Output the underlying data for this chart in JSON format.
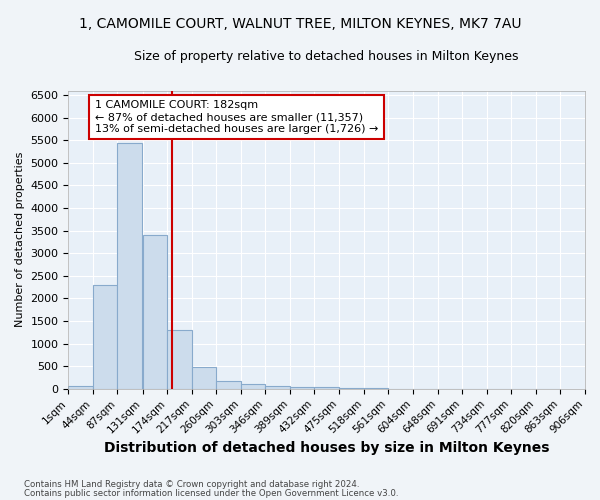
{
  "title1": "1, CAMOMILE COURT, WALNUT TREE, MILTON KEYNES, MK7 7AU",
  "title2": "Size of property relative to detached houses in Milton Keynes",
  "xlabel": "Distribution of detached houses by size in Milton Keynes",
  "ylabel": "Number of detached properties",
  "footer1": "Contains HM Land Registry data © Crown copyright and database right 2024.",
  "footer2": "Contains public sector information licensed under the Open Government Licence v3.0.",
  "bin_edges": [
    1,
    44,
    87,
    131,
    174,
    217,
    260,
    303,
    346,
    389,
    432,
    475,
    518,
    561,
    604,
    648,
    691,
    734,
    777,
    820,
    863
  ],
  "bar_heights": [
    70,
    2300,
    5450,
    3400,
    1300,
    480,
    170,
    100,
    70,
    40,
    50,
    30,
    10,
    5,
    5,
    5,
    3,
    2,
    2,
    2
  ],
  "bar_color": "#ccdcec",
  "bar_edgecolor": "#88aacc",
  "property_size": 182,
  "vline_color": "#cc0000",
  "annotation_title": "1 CAMOMILE COURT: 182sqm",
  "annotation_line1": "← 87% of detached houses are smaller (11,357)",
  "annotation_line2": "13% of semi-detached houses are larger (1,726) →",
  "annotation_box_color": "#cc0000",
  "ylim_max": 6600,
  "yticks": [
    0,
    500,
    1000,
    1500,
    2000,
    2500,
    3000,
    3500,
    4000,
    4500,
    5000,
    5500,
    6000,
    6500
  ],
  "plot_bg_color": "#e8f0f8",
  "fig_bg_color": "#f0f4f8",
  "grid_color": "#ffffff",
  "tick_label_size": 7.5,
  "title1_fontsize": 10,
  "title2_fontsize": 9,
  "xlabel_fontsize": 10,
  "ylabel_fontsize": 8
}
